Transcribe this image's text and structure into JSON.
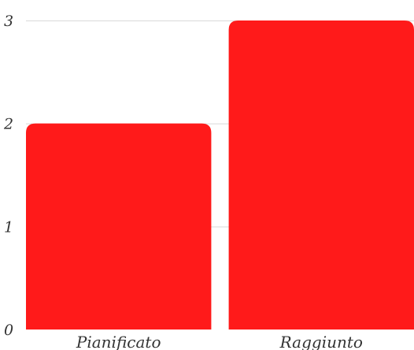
{
  "chart_data": {
    "type": "bar",
    "categories": [
      "Pianificato",
      "Raggiunto"
    ],
    "values": [
      2,
      3
    ],
    "ylim": [
      0,
      3
    ],
    "yticks": [
      "0",
      "1",
      "2",
      "3"
    ],
    "grid": true,
    "bar_color": "#ff1a1a"
  }
}
